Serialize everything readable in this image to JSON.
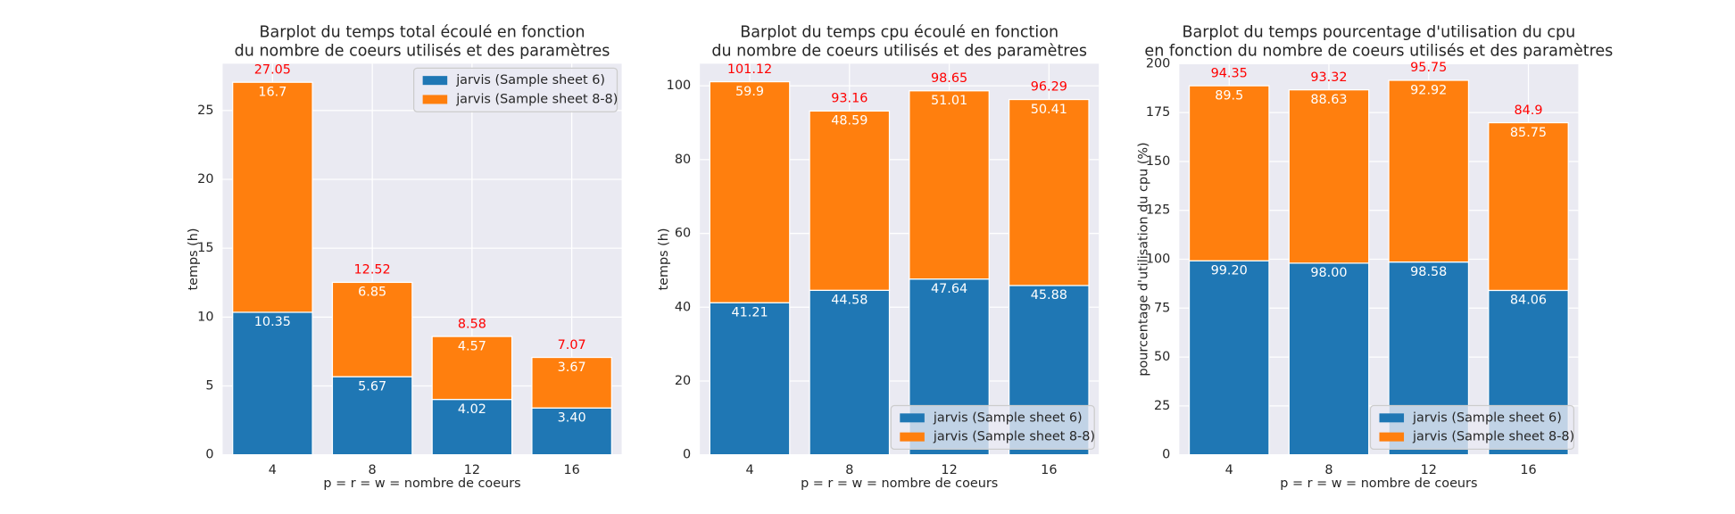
{
  "chart_data": [
    {
      "type": "bar",
      "stacked": true,
      "title": [
        "Barplot du temps total écoulé en fonction",
        "du nombre de coeurs utilisés et des paramètres"
      ],
      "xlabel": "p = r = w = nombre de coeurs",
      "ylabel": "temps (h)",
      "categories": [
        4,
        8,
        12,
        16
      ],
      "series": [
        {
          "name": "jarvis (Sample sheet 6)",
          "color": "#1f77b4",
          "values": [
            10.35,
            5.67,
            4.02,
            3.4
          ],
          "value_labels": [
            "10.35",
            "5.67",
            "4.02",
            "3.40"
          ]
        },
        {
          "name": "jarvis (Sample sheet 8-8)",
          "color": "#ff7f0e",
          "values": [
            16.7,
            6.85,
            4.57,
            3.67
          ]
        }
      ],
      "annotations": [
        27.05,
        12.52,
        8.58,
        7.07
      ],
      "annotation_color": "#ff0000",
      "ylim": [
        0,
        28.4
      ],
      "yticks": [
        0,
        5,
        10,
        15,
        20,
        25
      ],
      "grid": true,
      "legend": "upper right"
    },
    {
      "type": "bar",
      "stacked": true,
      "title": [
        "Barplot du temps cpu écoulé en fonction",
        "du nombre de coeurs utilisés et des paramètres"
      ],
      "xlabel": "p = r = w = nombre de coeurs",
      "ylabel": "temps (h)",
      "categories": [
        4,
        8,
        12,
        16
      ],
      "series": [
        {
          "name": "jarvis (Sample sheet 6)",
          "color": "#1f77b4",
          "values": [
            41.21,
            44.58,
            47.64,
            45.88
          ]
        },
        {
          "name": "jarvis (Sample sheet 8-8)",
          "color": "#ff7f0e",
          "values": [
            59.9,
            48.59,
            51.01,
            50.41
          ]
        }
      ],
      "annotations": [
        101.12,
        93.16,
        98.65,
        96.29
      ],
      "annotation_color": "#ff0000",
      "ylim": [
        0,
        106
      ],
      "yticks": [
        0,
        20,
        40,
        60,
        80,
        100
      ],
      "grid": true,
      "legend": "lower right"
    },
    {
      "type": "bar",
      "stacked": true,
      "title": [
        "Barplot du temps pourcentage d'utilisation du cpu",
        "en fonction du nombre de coeurs utilisés et des paramètres"
      ],
      "xlabel": "p = r = w = nombre de coeurs",
      "ylabel": "pourcentage d'utilisation du cpu (%)",
      "categories": [
        4,
        8,
        12,
        16
      ],
      "series": [
        {
          "name": "jarvis (Sample sheet 6)",
          "color": "#1f77b4",
          "values": [
            99.2,
            98.0,
            98.58,
            84.06
          ],
          "value_labels": [
            "99.20",
            "98.00",
            "98.58",
            "84.06"
          ]
        },
        {
          "name": "jarvis (Sample sheet 8-8)",
          "color": "#ff7f0e",
          "values": [
            89.5,
            88.63,
            92.92,
            85.75
          ]
        }
      ],
      "annotations": [
        94.35,
        93.32,
        95.75,
        84.9
      ],
      "annotation_color": "#ff0000",
      "ylim": [
        0,
        200
      ],
      "yticks": [
        0,
        25,
        50,
        75,
        100,
        125,
        150,
        175,
        200
      ],
      "grid": true,
      "legend": "lower right"
    }
  ]
}
